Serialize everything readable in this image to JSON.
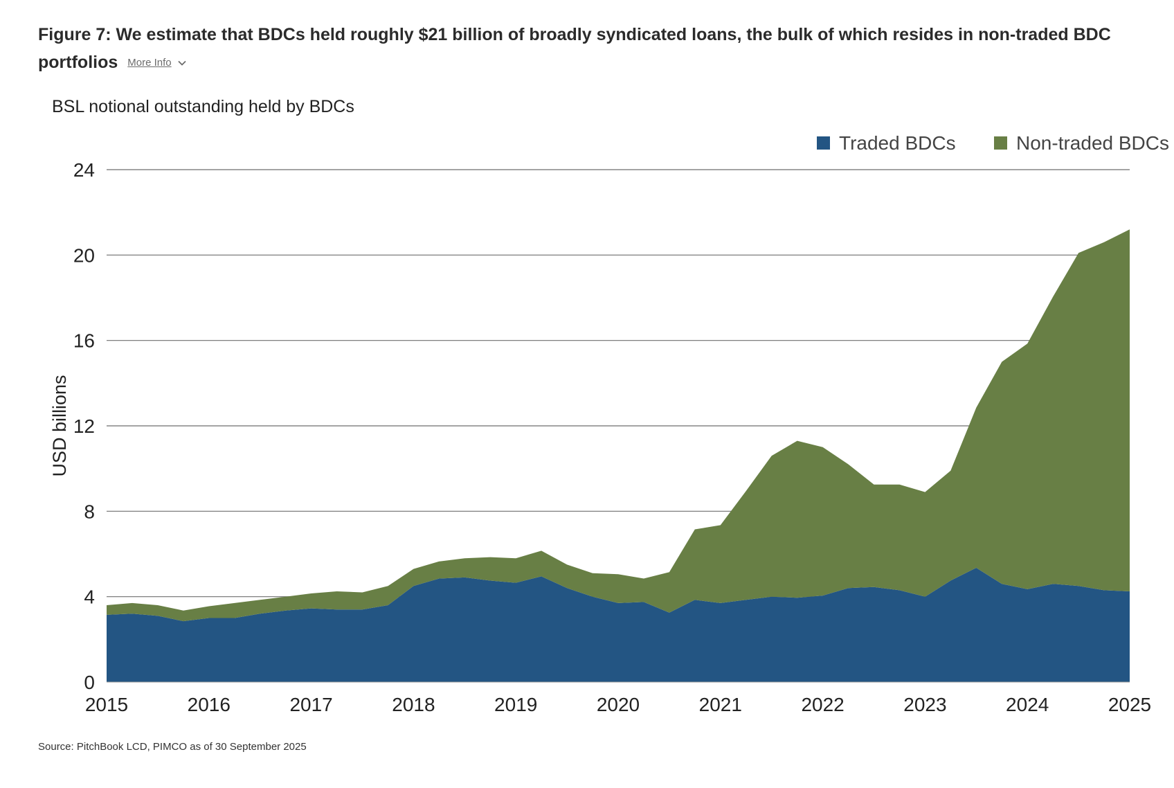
{
  "header": {
    "title": "Figure 7: We estimate that BDCs held roughly $21 billion of broadly syndicated loans, the bulk of which resides in non-traded BDC portfolios",
    "more_info_label": "More Info"
  },
  "icons": {
    "more_info": "chevron-down-icon"
  },
  "colors": {
    "traded": "#235583",
    "non_traded": "#687f45",
    "grid": "#6e6e6e",
    "text": "#222222"
  },
  "chart_data": {
    "type": "area",
    "stacked": true,
    "title": "",
    "subtitle": "BSL notional outstanding held by BDCs",
    "xlabel": "",
    "ylabel": "USD billions",
    "xlim": [
      2015,
      2025
    ],
    "ylim": [
      0,
      24
    ],
    "y_ticks": [
      0,
      4,
      8,
      12,
      16,
      20,
      24
    ],
    "x_ticks": [
      2015,
      2016,
      2017,
      2018,
      2019,
      2020,
      2021,
      2022,
      2023,
      2024,
      2025
    ],
    "grid": true,
    "legend_position": "top-right",
    "x": [
      2015.0,
      2015.25,
      2015.5,
      2015.75,
      2016.0,
      2016.25,
      2016.5,
      2016.75,
      2017.0,
      2017.25,
      2017.5,
      2017.75,
      2018.0,
      2018.25,
      2018.5,
      2018.75,
      2019.0,
      2019.25,
      2019.5,
      2019.75,
      2020.0,
      2020.25,
      2020.5,
      2020.75,
      2021.0,
      2021.25,
      2021.5,
      2021.75,
      2022.0,
      2022.25,
      2022.5,
      2022.75,
      2023.0,
      2023.25,
      2023.5,
      2023.75,
      2024.0,
      2024.25,
      2024.5,
      2024.75,
      2025.0
    ],
    "series": [
      {
        "name": "Traded BDCs",
        "color": "#235583",
        "values": [
          3.15,
          3.2,
          3.1,
          2.85,
          3.0,
          3.0,
          3.2,
          3.35,
          3.45,
          3.4,
          3.4,
          3.6,
          4.5,
          4.85,
          4.9,
          4.75,
          4.65,
          4.95,
          4.4,
          4.0,
          3.7,
          3.75,
          3.25,
          3.85,
          3.7,
          3.85,
          4.0,
          3.95,
          4.05,
          4.4,
          4.45,
          4.3,
          4.0,
          4.75,
          5.35,
          4.6,
          4.35,
          4.6,
          4.5,
          4.3,
          4.25
        ]
      },
      {
        "name": "Non-traded BDCs",
        "color": "#687f45",
        "values": [
          0.45,
          0.5,
          0.5,
          0.5,
          0.55,
          0.7,
          0.65,
          0.65,
          0.7,
          0.85,
          0.8,
          0.9,
          0.8,
          0.8,
          0.9,
          1.1,
          1.15,
          1.2,
          1.1,
          1.1,
          1.35,
          1.1,
          1.9,
          3.3,
          3.65,
          5.1,
          6.6,
          7.35,
          6.95,
          5.8,
          4.8,
          4.95,
          4.9,
          5.15,
          7.5,
          10.4,
          11.5,
          13.45,
          15.6,
          16.3,
          16.95
        ]
      }
    ]
  },
  "source": "Source: PitchBook LCD, PIMCO as of 30 September 2025"
}
